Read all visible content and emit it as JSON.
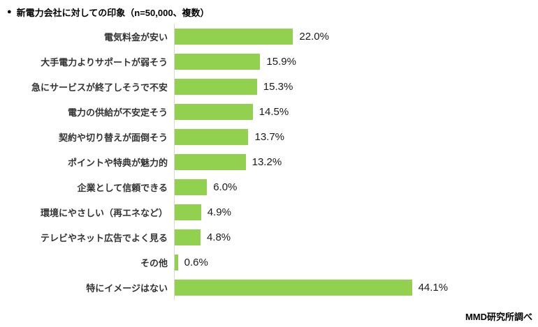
{
  "header": {
    "bullet": "●",
    "title": "新電力会社に対しての印象（n=50,000、複数）"
  },
  "footer": {
    "source": "MMD研究所調べ"
  },
  "colors": {
    "bar": "#92d050",
    "axis": "#d9d9d9"
  },
  "chart_data": {
    "type": "bar",
    "orientation": "horizontal",
    "title": "新電力会社に対しての印象（n=50,000、複数）",
    "sample_note": "n=50,000、複数",
    "categories": [
      "電気料金が安い",
      "大手電力よりサポートが弱そう",
      "急にサービスが終了しそうで不安",
      "電力の供給が不安定そう",
      "契約や切り替えが面倒そう",
      "ポイントや特典が魅力的",
      "企業として信頼できる",
      "環境にやさしい（再エネなど）",
      "テレビやネット広告でよく見る",
      "その他",
      "特にイメージはない"
    ],
    "values": [
      22.0,
      15.9,
      15.3,
      14.5,
      13.7,
      13.2,
      6.0,
      4.9,
      4.8,
      0.6,
      44.1
    ],
    "value_labels": [
      "22.0%",
      "15.9%",
      "15.3%",
      "14.5%",
      "13.7%",
      "13.2%",
      "6.0%",
      "4.9%",
      "4.8%",
      "0.6%",
      "44.1%"
    ],
    "xlabel": "",
    "ylabel": "",
    "xlim": [
      0,
      50
    ],
    "grid": false,
    "legend_position": "none",
    "data_labels": "outside-end",
    "source": "MMD研究所調べ"
  }
}
